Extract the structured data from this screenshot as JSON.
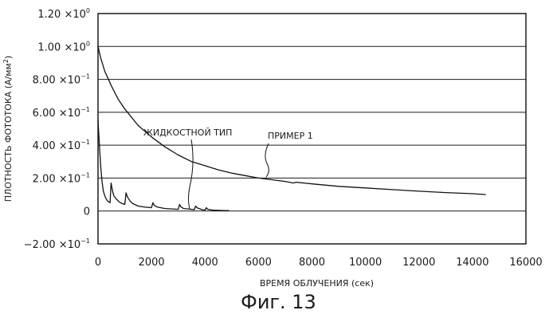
{
  "caption": "Фиг. 13",
  "chart_data": {
    "type": "line",
    "title": "",
    "xlabel": "ВРЕМЯ ОБЛУЧЕНИЯ (сек)",
    "ylabel": "ПЛОТНОСТЬ ФОТОТОКА (А/мм",
    "ylabel_sup": "2",
    "ylabel_end": ")",
    "xlim": [
      0,
      16000
    ],
    "ylim": [
      -0.2,
      1.2
    ],
    "grid": "horizontal",
    "x_ticks": [
      {
        "value": 0,
        "label": "0"
      },
      {
        "value": 2000,
        "label": "2000"
      },
      {
        "value": 4000,
        "label": "4000"
      },
      {
        "value": 6000,
        "label": "6000"
      },
      {
        "value": 8000,
        "label": "8000"
      },
      {
        "value": 10000,
        "label": "10000"
      },
      {
        "value": 12000,
        "label": "12000"
      },
      {
        "value": 14000,
        "label": "14000"
      },
      {
        "value": 16000,
        "label": "16000"
      }
    ],
    "y_ticks": [
      {
        "value": 1.2,
        "mant": "1.20",
        "exp": "0"
      },
      {
        "value": 1.0,
        "mant": "1.00",
        "exp": "0"
      },
      {
        "value": 0.8,
        "mant": "8.00",
        "exp": "−1"
      },
      {
        "value": 0.6,
        "mant": "6.00",
        "exp": "−1"
      },
      {
        "value": 0.4,
        "mant": "4.00",
        "exp": "−1"
      },
      {
        "value": 0.2,
        "mant": "2.00",
        "exp": "−1"
      },
      {
        "value": 0.0,
        "mant": "0",
        "exp": ""
      },
      {
        "value": -0.2,
        "mant": "−2.00",
        "exp": "−1"
      }
    ],
    "times_sign": "×10",
    "series": [
      {
        "name": "ПРИМЕР 1",
        "x": [
          0,
          100,
          250,
          500,
          750,
          1000,
          1500,
          2000,
          2500,
          3000,
          3500,
          4000,
          4500,
          5000,
          5500,
          6000,
          6500,
          7000,
          7300,
          7400,
          8000,
          9000,
          10000,
          11000,
          12000,
          13000,
          14000,
          14500
        ],
        "y": [
          1.0,
          0.93,
          0.85,
          0.76,
          0.68,
          0.62,
          0.52,
          0.45,
          0.39,
          0.34,
          0.3,
          0.275,
          0.25,
          0.23,
          0.215,
          0.2,
          0.19,
          0.18,
          0.17,
          0.175,
          0.165,
          0.15,
          0.14,
          0.13,
          0.12,
          0.112,
          0.105,
          0.1
        ]
      },
      {
        "name": "ЖИДКОСТНОЙ ТИП",
        "x": [
          0,
          60,
          100,
          150,
          200,
          280,
          360,
          450,
          490,
          520,
          560,
          600,
          700,
          800,
          900,
          1000,
          1050,
          1100,
          1200,
          1300,
          1500,
          1700,
          2000,
          2050,
          2100,
          2200,
          2500,
          3000,
          3050,
          3100,
          3200,
          3500,
          3600,
          3650,
          3700,
          3900,
          4000,
          4050,
          4100,
          4300,
          4700,
          4900
        ],
        "y": [
          0.55,
          0.38,
          0.27,
          0.18,
          0.12,
          0.08,
          0.06,
          0.05,
          0.17,
          0.14,
          0.11,
          0.09,
          0.07,
          0.055,
          0.045,
          0.04,
          0.11,
          0.085,
          0.06,
          0.045,
          0.03,
          0.025,
          0.02,
          0.05,
          0.035,
          0.025,
          0.015,
          0.01,
          0.04,
          0.025,
          0.015,
          0.01,
          0.008,
          0.03,
          0.02,
          0.008,
          0.006,
          0.02,
          0.01,
          0.005,
          0.003,
          0.002
        ]
      }
    ],
    "annotations": [
      {
        "text": "ЖИДКОСТНОЙ ТИП",
        "series": "ЖИДКОСТНОЙ ТИП",
        "x": 3400,
        "y": 0.01
      },
      {
        "text": "ПРИМЕР 1",
        "series": "ПРИМЕР 1",
        "x": 6200,
        "y": 0.21
      }
    ]
  }
}
